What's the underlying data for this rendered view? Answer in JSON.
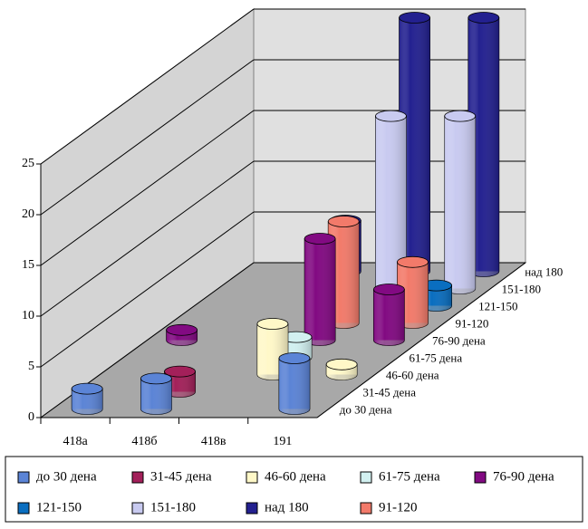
{
  "chart_data": {
    "type": "bar3d",
    "categories": [
      "418а",
      "418б",
      "418в",
      "191"
    ],
    "z_categories": [
      "до 30 дена",
      "31-45 дена",
      "46-60 дена",
      "61-75 дена",
      "76-90 дена",
      "91-120",
      "121-150",
      "151-180",
      "над 180"
    ],
    "ylim": [
      0,
      25
    ],
    "yticks": [
      0,
      5,
      10,
      15,
      20,
      25
    ],
    "grid": true,
    "series": [
      {
        "name": "до 30 дена",
        "color": "#5b84d6",
        "values": [
          2,
          3,
          0,
          5
        ]
      },
      {
        "name": "31-45 дена",
        "color": "#a3205a",
        "values": [
          0,
          2,
          0,
          0
        ]
      },
      {
        "name": "46-60 дена",
        "color": "#fff8c8",
        "values": [
          0,
          0,
          5,
          1
        ]
      },
      {
        "name": "61-75 дена",
        "color": "#d2f0f0",
        "values": [
          0,
          0,
          2,
          0
        ]
      },
      {
        "name": "76-90 дена",
        "color": "#820a82",
        "values": [
          1,
          0,
          10,
          5
        ]
      },
      {
        "name": "121-150",
        "color": "#0a6ec0",
        "values": [
          0,
          0,
          0,
          2
        ]
      },
      {
        "name": "151-180",
        "color": "#c8caf0",
        "values": [
          0,
          0,
          17,
          17
        ]
      },
      {
        "name": "над 180",
        "color": "#23208f",
        "values": [
          0,
          5,
          25,
          25
        ]
      },
      {
        "name": "91-120",
        "color": "#f27a6a",
        "values": [
          0,
          0,
          10,
          6
        ]
      }
    ]
  }
}
